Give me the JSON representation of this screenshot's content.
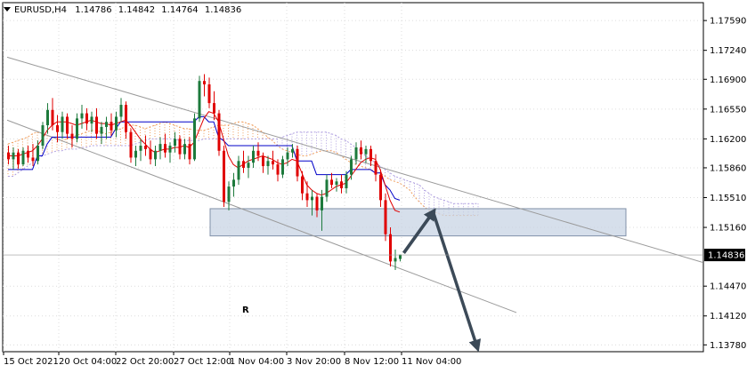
{
  "header": {
    "symbol": "EURUSD,H4",
    "open": "1.14786",
    "high": "1.14842",
    "low": "1.14764",
    "close": "1.14836"
  },
  "watermark": "R",
  "colors": {
    "bull": "#1d7a3c",
    "bear": "#e00000",
    "kijun": "#0000c8",
    "tenkan": "#e00000",
    "cloud_a": "#f0a060",
    "cloud_b": "#b0a0e0",
    "channel": "#9a9a9a",
    "zone_fill": "#c8d4e4",
    "zone_border": "#8090a8",
    "arrow": "#3c4a58",
    "grid": "#dcdcdc",
    "price_badge_bg": "#000000",
    "price_badge_text": "#ffffff",
    "watermark": "#e9eef4"
  },
  "chart_data": {
    "type": "candlestick",
    "instrument": "EURUSD",
    "timeframe": "H4",
    "ylim": [
      1.137,
      1.178
    ],
    "y_ticks": [
      "1.17590",
      "1.17240",
      "1.16900",
      "1.16550",
      "1.16200",
      "1.15860",
      "1.15510",
      "1.15160",
      "1.14470",
      "1.14120",
      "1.13780"
    ],
    "x_ticks": [
      "15 Oct 2021",
      "20 Oct 04:00",
      "22 Oct 20:00",
      "27 Oct 12:00",
      "1 Nov 04:00",
      "3 Nov 20:00",
      "8 Nov 12:00",
      "11 Nov 04:00"
    ],
    "current_price": "1.14836",
    "candles": [
      [
        1.1604,
        1.1612,
        1.159,
        1.1596
      ],
      [
        1.1596,
        1.161,
        1.1584,
        1.1604
      ],
      [
        1.1604,
        1.1608,
        1.1585,
        1.159
      ],
      [
        1.159,
        1.161,
        1.1588,
        1.1606
      ],
      [
        1.1606,
        1.1612,
        1.1592,
        1.1598
      ],
      [
        1.1598,
        1.1614,
        1.1588,
        1.1594
      ],
      [
        1.1594,
        1.1618,
        1.159,
        1.1612
      ],
      [
        1.1612,
        1.164,
        1.1608,
        1.1636
      ],
      [
        1.1636,
        1.1662,
        1.1626,
        1.1654
      ],
      [
        1.1654,
        1.1668,
        1.163,
        1.1636
      ],
      [
        1.1636,
        1.1648,
        1.1616,
        1.1628
      ],
      [
        1.1628,
        1.1652,
        1.162,
        1.1646
      ],
      [
        1.1646,
        1.165,
        1.162,
        1.1626
      ],
      [
        1.1626,
        1.1636,
        1.161,
        1.162
      ],
      [
        1.162,
        1.165,
        1.1616,
        1.1644
      ],
      [
        1.1644,
        1.166,
        1.1632,
        1.165
      ],
      [
        1.165,
        1.1656,
        1.163,
        1.1638
      ],
      [
        1.1638,
        1.1652,
        1.1628,
        1.1646
      ],
      [
        1.1646,
        1.1656,
        1.162,
        1.1626
      ],
      [
        1.1626,
        1.164,
        1.1614,
        1.1634
      ],
      [
        1.1634,
        1.1646,
        1.162,
        1.164
      ],
      [
        1.164,
        1.165,
        1.1624,
        1.163
      ],
      [
        1.163,
        1.1652,
        1.1622,
        1.1646
      ],
      [
        1.1646,
        1.1668,
        1.164,
        1.166
      ],
      [
        1.166,
        1.1664,
        1.162,
        1.1628
      ],
      [
        1.1628,
        1.1632,
        1.1592,
        1.1598
      ],
      [
        1.1598,
        1.1612,
        1.1588,
        1.1606
      ],
      [
        1.1606,
        1.162,
        1.1594,
        1.1612
      ],
      [
        1.1612,
        1.1624,
        1.16,
        1.1608
      ],
      [
        1.1608,
        1.1618,
        1.159,
        1.1596
      ],
      [
        1.1596,
        1.1612,
        1.1588,
        1.1606
      ],
      [
        1.1606,
        1.1622,
        1.1596,
        1.1614
      ],
      [
        1.1614,
        1.1626,
        1.1598,
        1.1604
      ],
      [
        1.1604,
        1.1616,
        1.1592,
        1.1612
      ],
      [
        1.1612,
        1.1628,
        1.1604,
        1.162
      ],
      [
        1.162,
        1.1624,
        1.1596,
        1.1602
      ],
      [
        1.1602,
        1.162,
        1.1596,
        1.1614
      ],
      [
        1.1614,
        1.1622,
        1.159,
        1.1596
      ],
      [
        1.1596,
        1.165,
        1.1594,
        1.1644
      ],
      [
        1.1644,
        1.1694,
        1.164,
        1.1688
      ],
      [
        1.1688,
        1.1696,
        1.167,
        1.1684
      ],
      [
        1.1684,
        1.1692,
        1.1656,
        1.1662
      ],
      [
        1.1662,
        1.1676,
        1.1642,
        1.165
      ],
      [
        1.165,
        1.1654,
        1.16,
        1.1606
      ],
      [
        1.1606,
        1.1612,
        1.154,
        1.1546
      ],
      [
        1.1546,
        1.157,
        1.1536,
        1.1564
      ],
      [
        1.1564,
        1.158,
        1.1552,
        1.1572
      ],
      [
        1.1572,
        1.16,
        1.1566,
        1.1594
      ],
      [
        1.1594,
        1.1606,
        1.158,
        1.1586
      ],
      [
        1.1586,
        1.16,
        1.1574,
        1.1592
      ],
      [
        1.1592,
        1.1612,
        1.1586,
        1.1606
      ],
      [
        1.1606,
        1.1616,
        1.1594,
        1.16
      ],
      [
        1.16,
        1.1604,
        1.158,
        1.1588
      ],
      [
        1.1588,
        1.16,
        1.1578,
        1.1594
      ],
      [
        1.1594,
        1.1606,
        1.1584,
        1.159
      ],
      [
        1.159,
        1.1596,
        1.157,
        1.1578
      ],
      [
        1.1578,
        1.16,
        1.1574,
        1.1596
      ],
      [
        1.1596,
        1.161,
        1.1588,
        1.1604
      ],
      [
        1.1604,
        1.1614,
        1.1598,
        1.1608
      ],
      [
        1.1608,
        1.1612,
        1.157,
        1.1576
      ],
      [
        1.1576,
        1.1582,
        1.1548,
        1.1556
      ],
      [
        1.1556,
        1.157,
        1.154,
        1.1548
      ],
      [
        1.1548,
        1.156,
        1.153,
        1.1552
      ],
      [
        1.1552,
        1.1556,
        1.1528,
        1.1536
      ],
      [
        1.1536,
        1.156,
        1.1512,
        1.1552
      ],
      [
        1.1552,
        1.1578,
        1.1546,
        1.1572
      ],
      [
        1.1572,
        1.158,
        1.1562,
        1.1566
      ],
      [
        1.1566,
        1.1574,
        1.1558,
        1.157
      ],
      [
        1.157,
        1.1578,
        1.1556,
        1.1562
      ],
      [
        1.1562,
        1.1582,
        1.1556,
        1.1578
      ],
      [
        1.1578,
        1.16,
        1.1572,
        1.1596
      ],
      [
        1.1596,
        1.1616,
        1.159,
        1.161
      ],
      [
        1.161,
        1.1618,
        1.1596,
        1.1602
      ],
      [
        1.1602,
        1.1612,
        1.1592,
        1.1608
      ],
      [
        1.1608,
        1.1612,
        1.1588,
        1.1594
      ],
      [
        1.1594,
        1.1602,
        1.157,
        1.1578
      ],
      [
        1.1578,
        1.1584,
        1.154,
        1.1548
      ],
      [
        1.1548,
        1.1556,
        1.15,
        1.1508
      ],
      [
        1.1508,
        1.1516,
        1.147,
        1.1476
      ],
      [
        1.1476,
        1.149,
        1.1466,
        1.148
      ],
      [
        1.1479,
        1.1484,
        1.1476,
        1.1484
      ]
    ],
    "tenkan_sen": [
      1.16,
      1.16,
      1.16,
      1.1602,
      1.1604,
      1.1606,
      1.1612,
      1.162,
      1.163,
      1.1636,
      1.164,
      1.164,
      1.164,
      1.1638,
      1.1636,
      1.1638,
      1.164,
      1.1642,
      1.164,
      1.1638,
      1.1638,
      1.1636,
      1.1638,
      1.164,
      1.1642,
      1.1636,
      1.1628,
      1.162,
      1.1614,
      1.1608,
      1.1604,
      1.1606,
      1.1608,
      1.1608,
      1.161,
      1.161,
      1.1612,
      1.161,
      1.1616,
      1.163,
      1.1644,
      1.1652,
      1.165,
      1.164,
      1.162,
      1.16,
      1.159,
      1.1586,
      1.159,
      1.1594,
      1.1596,
      1.1598,
      1.16,
      1.1598,
      1.1596,
      1.1592,
      1.159,
      1.1592,
      1.1596,
      1.1594,
      1.158,
      1.1566,
      1.156,
      1.1556,
      1.1554,
      1.1556,
      1.156,
      1.1564,
      1.1566,
      1.1568,
      1.1576,
      1.1584,
      1.1592,
      1.1596,
      1.1598,
      1.1596,
      1.1584,
      1.1566,
      1.1548,
      1.1536,
      1.1534
    ],
    "kijun_sen": [
      1.1584,
      1.1584,
      1.1584,
      1.1584,
      1.1584,
      1.1584,
      1.16,
      1.16,
      1.1614,
      1.1622,
      1.1622,
      1.1622,
      1.1622,
      1.1622,
      1.1622,
      1.1622,
      1.1622,
      1.1622,
      1.1622,
      1.1622,
      1.1622,
      1.1622,
      1.1632,
      1.164,
      1.164,
      1.164,
      1.164,
      1.164,
      1.164,
      1.164,
      1.164,
      1.164,
      1.164,
      1.164,
      1.164,
      1.164,
      1.164,
      1.164,
      1.164,
      1.1646,
      1.1646,
      1.164,
      1.164,
      1.1622,
      1.1618,
      1.1612,
      1.1612,
      1.1612,
      1.1612,
      1.1612,
      1.1612,
      1.1612,
      1.1612,
      1.1612,
      1.1612,
      1.1612,
      1.1612,
      1.1612,
      1.1612,
      1.1594,
      1.1594,
      1.1594,
      1.1594,
      1.1578,
      1.1578,
      1.1578,
      1.1578,
      1.1578,
      1.1578,
      1.1578,
      1.1584,
      1.1584,
      1.1584,
      1.1584,
      1.1584,
      1.158,
      1.158,
      1.1566,
      1.156,
      1.155,
      1.1548
    ],
    "senkou_span_a": [
      1.1614,
      1.1616,
      1.1618,
      1.162,
      1.1622,
      1.1626,
      1.1628,
      1.1626,
      1.1624,
      1.1622,
      1.162,
      1.1618,
      1.162,
      1.1622,
      1.1624,
      1.1626,
      1.1628,
      1.163,
      1.163,
      1.1628,
      1.1626,
      1.1628,
      1.163,
      1.1632,
      1.1634,
      1.1636,
      1.1636,
      1.1634,
      1.1632,
      1.1634,
      1.1636,
      1.1638,
      1.164,
      1.1638,
      1.1636,
      1.1634,
      1.1632,
      1.1632,
      1.163,
      1.163,
      1.163,
      1.1632,
      1.1634,
      1.1636,
      1.1636,
      1.1636,
      1.1638,
      1.164,
      1.164,
      1.1638,
      1.1636,
      1.1632,
      1.1628,
      1.1622,
      1.1618,
      1.1612,
      1.1608,
      1.1606,
      1.1604,
      1.1602,
      1.16,
      1.16,
      1.1602,
      1.1604,
      1.1606,
      1.1606,
      1.1606,
      1.1604,
      1.16,
      1.1596,
      1.1592,
      1.159,
      1.1588,
      1.1586,
      1.1584,
      1.1582,
      1.158,
      1.1576,
      1.1572,
      1.157,
      1.1568,
      1.1564,
      1.156,
      1.1552,
      1.1546,
      1.154,
      1.1536,
      1.1534,
      1.1532,
      1.153,
      1.153,
      1.153,
      1.153,
      1.153,
      1.153,
      1.153,
      1.153
    ],
    "senkou_span_b": [
      1.1576,
      1.1576,
      1.158,
      1.1584,
      1.1588,
      1.1592,
      1.1596,
      1.16,
      1.1602,
      1.1604,
      1.1606,
      1.1606,
      1.1608,
      1.1608,
      1.1608,
      1.161,
      1.161,
      1.1612,
      1.1612,
      1.1612,
      1.1612,
      1.1612,
      1.1612,
      1.1612,
      1.1612,
      1.1612,
      1.1614,
      1.1616,
      1.1618,
      1.162,
      1.162,
      1.162,
      1.162,
      1.162,
      1.162,
      1.1618,
      1.1618,
      1.1618,
      1.1618,
      1.1618,
      1.162,
      1.162,
      1.162,
      1.162,
      1.162,
      1.162,
      1.162,
      1.162,
      1.162,
      1.162,
      1.162,
      1.162,
      1.162,
      1.162,
      1.162,
      1.162,
      1.1622,
      1.1624,
      1.1626,
      1.1628,
      1.1628,
      1.1628,
      1.1628,
      1.1628,
      1.1628,
      1.1628,
      1.1626,
      1.1624,
      1.162,
      1.1618,
      1.1614,
      1.161,
      1.1606,
      1.16,
      1.1596,
      1.1592,
      1.1588,
      1.1584,
      1.158,
      1.1576,
      1.1574,
      1.1572,
      1.157,
      1.1568,
      1.1566,
      1.156,
      1.1556,
      1.1552,
      1.155,
      1.1548,
      1.1546,
      1.1544,
      1.1544,
      1.1544,
      1.1544,
      1.1544,
      1.1544
    ],
    "channel": {
      "upper": {
        "from": [
          0,
          1.1716
        ],
        "to": [
          142,
          1.1475
        ]
      },
      "lower": {
        "from": [
          0,
          1.1642
        ],
        "to": [
          104,
          1.1416
        ]
      }
    },
    "support_zone": {
      "from_bar": 42,
      "to_bar": 126,
      "low": 1.1506,
      "high": 1.1538
    },
    "forecast_path": [
      [
        81,
        1.1486
      ],
      [
        87,
        1.1534
      ],
      [
        96,
        1.1375
      ]
    ]
  }
}
